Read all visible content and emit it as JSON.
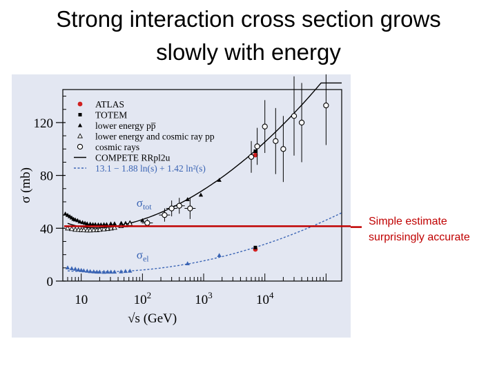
{
  "slide": {
    "title_line1": "Strong interaction cross section grows",
    "title_line2": "slowly with energy"
  },
  "callout": {
    "line1": "Simple estimate",
    "line2": "surprisingly accurate",
    "color": "#c00000",
    "estimate_sigma_mb": 41.5
  },
  "colors": {
    "panel_bg": "#e3e7f2",
    "axis": "#000000",
    "atlas": "#d02020",
    "elastic": "#3a64b4",
    "estimate_line": "#c00000"
  },
  "chart_data": {
    "type": "scatter",
    "title": "",
    "xlabel": "√s (GeV)",
    "ylabel": "σ (mb)",
    "xscale": "log",
    "xlim": [
      5,
      180000
    ],
    "ylim": [
      0,
      145
    ],
    "xticks": [
      {
        "value": 10,
        "base": "10",
        "exp": ""
      },
      {
        "value": 100,
        "base": "10",
        "exp": "2"
      },
      {
        "value": 1000,
        "base": "10",
        "exp": "3"
      },
      {
        "value": 10000,
        "base": "10",
        "exp": "4"
      }
    ],
    "yticks": [
      0,
      40,
      80,
      120
    ],
    "curve_labels": {
      "total": {
        "main": "σ",
        "sub": "tot",
        "x": 80,
        "y": 50
      },
      "elastic": {
        "main": "σ",
        "sub": "el",
        "x": 80,
        "y": 16
      }
    },
    "legend": {
      "position": "top-left",
      "entries": [
        {
          "label": "ATLAS",
          "marker": "circle-filled",
          "color": "#d02020"
        },
        {
          "label": "TOTEM",
          "marker": "square-filled",
          "color": "#000000"
        },
        {
          "label": "lower energy pp̅",
          "marker": "triangle-filled",
          "color": "#000000"
        },
        {
          "label": "lower energy and cosmic ray pp",
          "marker": "triangle-open",
          "color": "#000000"
        },
        {
          "label": "cosmic rays",
          "marker": "circle-open",
          "color": "#000000"
        },
        {
          "label": "COMPETE RRpl2u",
          "marker": "line-solid",
          "color": "#000000"
        },
        {
          "label": "13.1 − 1.88 ln(s) + 1.42 ln²(s)",
          "marker": "line-dashed",
          "color": "#3a64b4"
        }
      ]
    },
    "series": [
      {
        "name": "ATLAS",
        "marker": "circle-filled",
        "color": "#d02020",
        "points": [
          {
            "x": 7000,
            "y": 95.4
          },
          {
            "x": 7000,
            "y": 24.0
          }
        ]
      },
      {
        "name": "TOTEM",
        "marker": "square-filled",
        "color": "#000000",
        "points": [
          {
            "x": 7000,
            "y": 98.3
          },
          {
            "x": 7000,
            "y": 25.4
          }
        ]
      },
      {
        "name": "lower energy pp̅",
        "marker": "triangle-filled",
        "color": "#000000",
        "points": [
          {
            "x": 5.5,
            "y": 51
          },
          {
            "x": 6,
            "y": 50
          },
          {
            "x": 6.5,
            "y": 49
          },
          {
            "x": 7,
            "y": 48
          },
          {
            "x": 7.5,
            "y": 47
          },
          {
            "x": 8,
            "y": 46.5
          },
          {
            "x": 8.7,
            "y": 46
          },
          {
            "x": 9.5,
            "y": 45
          },
          {
            "x": 10.5,
            "y": 44.5
          },
          {
            "x": 11.5,
            "y": 44
          },
          {
            "x": 12.5,
            "y": 43.5
          },
          {
            "x": 14,
            "y": 43.3
          },
          {
            "x": 15.5,
            "y": 43
          },
          {
            "x": 17,
            "y": 43
          },
          {
            "x": 19,
            "y": 42.8
          },
          {
            "x": 21,
            "y": 42.8
          },
          {
            "x": 23.5,
            "y": 43
          },
          {
            "x": 26,
            "y": 43
          },
          {
            "x": 30.4,
            "y": 43.5
          },
          {
            "x": 35,
            "y": 43.6
          },
          {
            "x": 45,
            "y": 44
          },
          {
            "x": 53,
            "y": 44
          },
          {
            "x": 62.5,
            "y": 44.5
          },
          {
            "x": 100,
            "y": 46
          },
          {
            "x": 546,
            "y": 61.9
          },
          {
            "x": 900,
            "y": 65.3
          },
          {
            "x": 1800,
            "y": 76.5
          }
        ]
      },
      {
        "name": "lower energy and cosmic ray pp",
        "marker": "triangle-open",
        "color": "#000000",
        "points": [
          {
            "x": 6,
            "y": 40
          },
          {
            "x": 7,
            "y": 39.5
          },
          {
            "x": 8,
            "y": 39
          },
          {
            "x": 9,
            "y": 38.9
          },
          {
            "x": 10,
            "y": 38.7
          },
          {
            "x": 11,
            "y": 38.6
          },
          {
            "x": 12.5,
            "y": 38.5
          },
          {
            "x": 14,
            "y": 38.5
          },
          {
            "x": 16,
            "y": 38.6
          },
          {
            "x": 18,
            "y": 38.7
          },
          {
            "x": 20,
            "y": 39
          },
          {
            "x": 23.5,
            "y": 39.3
          },
          {
            "x": 27,
            "y": 39.6
          },
          {
            "x": 30.7,
            "y": 40
          },
          {
            "x": 35,
            "y": 40.5
          },
          {
            "x": 44.7,
            "y": 41.7
          },
          {
            "x": 52.8,
            "y": 42.4
          },
          {
            "x": 62.5,
            "y": 43.5
          }
        ]
      },
      {
        "name": "cosmic rays",
        "marker": "circle-open",
        "color": "#000000",
        "points": [
          {
            "x": 120,
            "y": 44,
            "err": 3
          },
          {
            "x": 230,
            "y": 50,
            "err": 5
          },
          {
            "x": 300,
            "y": 55,
            "err": 6
          },
          {
            "x": 400,
            "y": 57,
            "err": 6
          },
          {
            "x": 600,
            "y": 55,
            "err": 8
          },
          {
            "x": 6000,
            "y": 94,
            "err": 12
          },
          {
            "x": 7500,
            "y": 102,
            "err": 14
          },
          {
            "x": 10000,
            "y": 117,
            "err": 20
          },
          {
            "x": 15000,
            "y": 106,
            "err": 25
          },
          {
            "x": 20000,
            "y": 100,
            "err": 25
          },
          {
            "x": 30000,
            "y": 125,
            "err": 30
          },
          {
            "x": 40000,
            "y": 120,
            "err": 30
          },
          {
            "x": 100000,
            "y": 133,
            "err": 30
          }
        ]
      },
      {
        "name": "σel data",
        "marker": "triangle-filled",
        "color": "#3a64b4",
        "points": [
          {
            "x": 6,
            "y": 10.2
          },
          {
            "x": 7,
            "y": 9.6
          },
          {
            "x": 8,
            "y": 9.2
          },
          {
            "x": 9,
            "y": 8.6
          },
          {
            "x": 10,
            "y": 8.3
          },
          {
            "x": 11,
            "y": 8.0
          },
          {
            "x": 12.5,
            "y": 7.7
          },
          {
            "x": 14,
            "y": 7.4
          },
          {
            "x": 16,
            "y": 7.2
          },
          {
            "x": 18,
            "y": 7.0
          },
          {
            "x": 20,
            "y": 7.0
          },
          {
            "x": 23.5,
            "y": 6.9
          },
          {
            "x": 27,
            "y": 7.0
          },
          {
            "x": 30.6,
            "y": 7.0
          },
          {
            "x": 35,
            "y": 7.0
          },
          {
            "x": 44.7,
            "y": 7.2
          },
          {
            "x": 52.8,
            "y": 7.5
          },
          {
            "x": 62.5,
            "y": 7.7
          },
          {
            "x": 546,
            "y": 13.3
          },
          {
            "x": 1800,
            "y": 19.6
          }
        ]
      }
    ],
    "fits": [
      {
        "name": "COMPETE RRpl2u",
        "style": "solid",
        "color": "#000000",
        "model": "compete"
      },
      {
        "name": "13.1 − 1.88 ln(s) + 1.42 ln²(s)",
        "style": "dashed",
        "color": "#3a64b4",
        "model": "elastic"
      }
    ]
  }
}
